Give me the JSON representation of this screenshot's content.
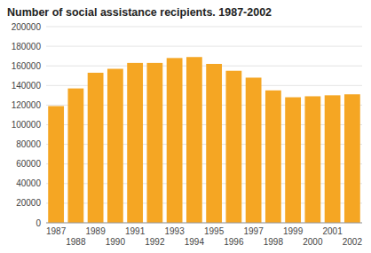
{
  "chart_data": {
    "type": "bar",
    "title": "Number of social assistance recipients. 1987-2002",
    "categories": [
      "1987",
      "1988",
      "1989",
      "1990",
      "1991",
      "1992",
      "1993",
      "1994",
      "1995",
      "1996",
      "1997",
      "1998",
      "1999",
      "2000",
      "2001",
      "2002"
    ],
    "values": [
      119000,
      137000,
      153000,
      157000,
      163000,
      163000,
      168000,
      169000,
      162000,
      155000,
      148000,
      135000,
      128000,
      129000,
      130000,
      131000
    ],
    "color": "#F5A623",
    "ylim": [
      0,
      200000
    ],
    "yticks": [
      0,
      20000,
      40000,
      60000,
      80000,
      100000,
      120000,
      140000,
      160000,
      180000,
      200000
    ],
    "grid": true
  }
}
